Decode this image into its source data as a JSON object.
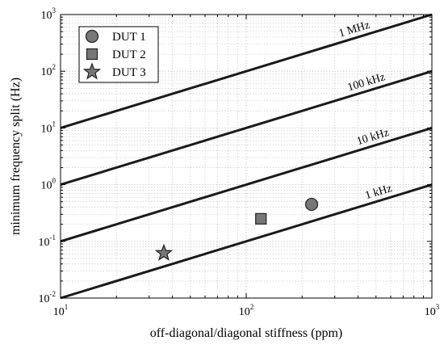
{
  "chart_data": {
    "type": "scatter",
    "title": "",
    "xlabel": "off-diagonal/diagonal stiffness (ppm)",
    "ylabel": "minimum frequency split (Hz)",
    "xscale": "log",
    "yscale": "log",
    "xlim": [
      10,
      1000
    ],
    "ylim": [
      0.01,
      1000
    ],
    "grid": true,
    "x_ticks": [
      {
        "base": "10",
        "exp": "1"
      },
      {
        "base": "10",
        "exp": "2"
      },
      {
        "base": "10",
        "exp": "3"
      }
    ],
    "y_ticks": [
      {
        "base": "10",
        "exp": "-2"
      },
      {
        "base": "10",
        "exp": "-1"
      },
      {
        "base": "10",
        "exp": "0"
      },
      {
        "base": "10",
        "exp": "1"
      },
      {
        "base": "10",
        "exp": "2"
      },
      {
        "base": "10",
        "exp": "3"
      }
    ],
    "legend_position": "top-left",
    "reference_lines": [
      {
        "label": "1 kHz",
        "x": [
          10,
          1000
        ],
        "y": [
          0.01,
          1
        ]
      },
      {
        "label": "10 kHz",
        "x": [
          10,
          1000
        ],
        "y": [
          0.1,
          10
        ]
      },
      {
        "label": "100 kHz",
        "x": [
          10,
          1000
        ],
        "y": [
          1,
          100
        ]
      },
      {
        "label": "1 MHz",
        "x": [
          10,
          1000
        ],
        "y": [
          10,
          1000
        ]
      }
    ],
    "series": [
      {
        "name": "DUT 1",
        "marker": "circle",
        "x": [
          225
        ],
        "y": [
          0.45
        ]
      },
      {
        "name": "DUT 2",
        "marker": "square",
        "x": [
          120
        ],
        "y": [
          0.25
        ]
      },
      {
        "name": "DUT 3",
        "marker": "star",
        "x": [
          36
        ],
        "y": [
          0.062
        ]
      }
    ],
    "colors": {
      "marker_fill": "#777777",
      "marker_edge": "#222222",
      "line": "#1a1a1a",
      "grid": "#c8c8c8"
    }
  }
}
